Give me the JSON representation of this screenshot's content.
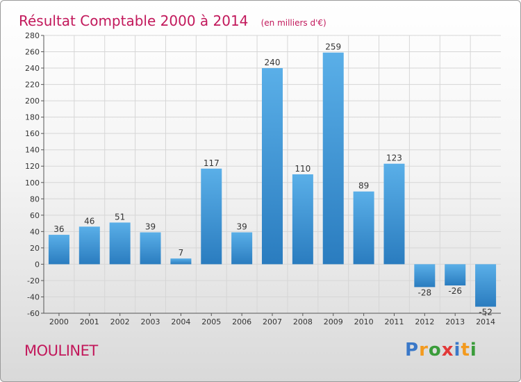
{
  "chart_data": {
    "type": "bar",
    "title": "Résultat Comptable 2000 à 2014",
    "subtitle": "(en milliers d'€)",
    "categories": [
      "2000",
      "2001",
      "2002",
      "2003",
      "2004",
      "2005",
      "2006",
      "2007",
      "2008",
      "2009",
      "2010",
      "2011",
      "2012",
      "2013",
      "2014"
    ],
    "values": [
      36,
      46,
      51,
      39,
      7,
      117,
      39,
      240,
      110,
      259,
      89,
      123,
      -28,
      -26,
      -52
    ],
    "data_labels": [
      "36",
      "46",
      "51",
      "39",
      "7",
      "117",
      "39",
      "240",
      "110",
      "259",
      "89",
      "123",
      "-28",
      "-26",
      "-52"
    ],
    "xlabel": "",
    "ylabel": "",
    "ylim": [
      -60,
      280
    ],
    "yticks": [
      -60,
      -40,
      -20,
      0,
      20,
      40,
      60,
      80,
      100,
      120,
      140,
      160,
      180,
      200,
      220,
      240,
      260,
      280
    ],
    "grid": true
  },
  "footer": {
    "commune": "MOULINET",
    "brand_letters": [
      "P",
      "r",
      "o",
      "x",
      "i",
      "t",
      "i"
    ]
  },
  "colors": {
    "title": "#c2185b",
    "bar_light": "#5aafe8",
    "bar_dark": "#2a7cbf",
    "grid": "#d6d6d6",
    "brand": [
      "#3a78c8",
      "#f39a1e",
      "#3a9c3a",
      "#e23838",
      "#3a78c8",
      "#f39a1e",
      "#3a9c3a"
    ]
  }
}
